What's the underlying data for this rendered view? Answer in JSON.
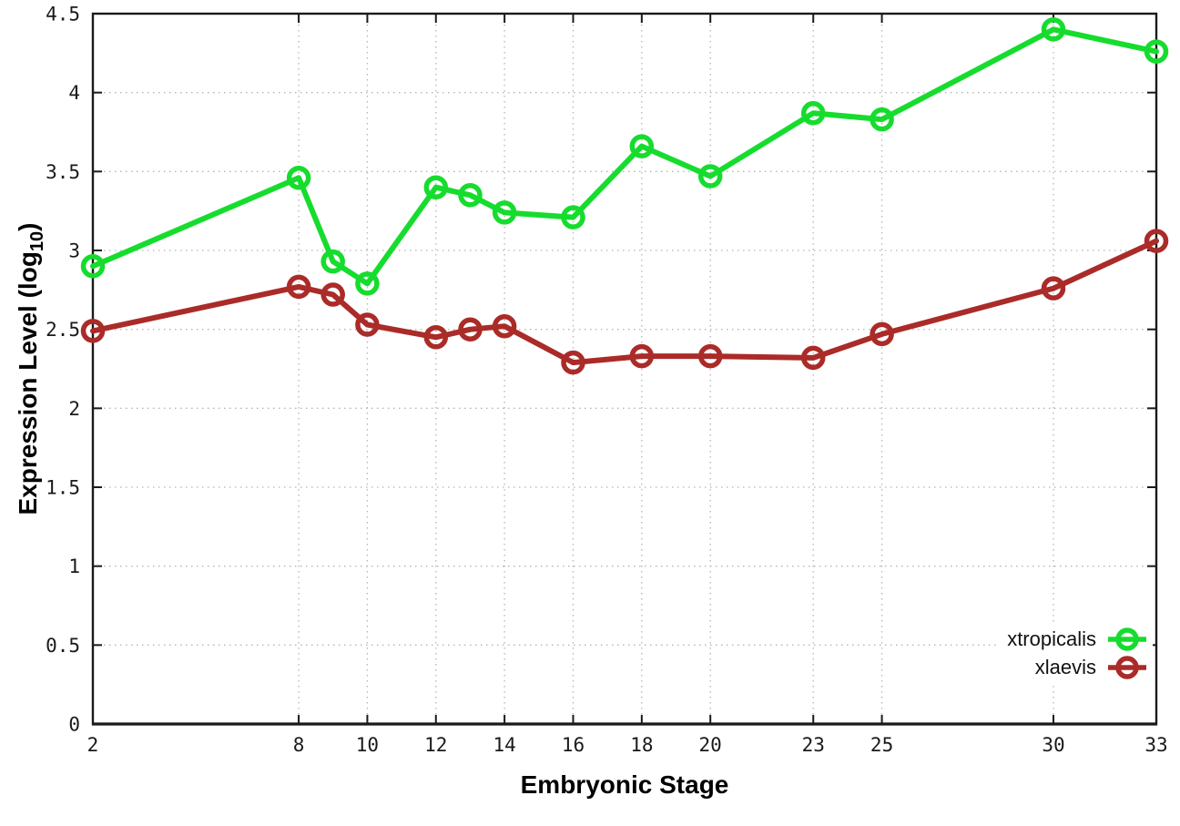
{
  "chart_data": {
    "type": "line",
    "title": "",
    "xlabel": "Embryonic Stage",
    "ylabel_main": "Expression Level (log",
    "ylabel_sub": "10",
    "ylabel_end": ")",
    "xlim": [
      2,
      33
    ],
    "ylim": [
      0,
      4.5
    ],
    "grid": true,
    "grid_style": "dotted",
    "legend_position": "bottom-right",
    "x_ticks": [
      {
        "value": 2,
        "label": "2"
      },
      {
        "value": 8,
        "label": "8"
      },
      {
        "value": 10,
        "label": "10"
      },
      {
        "value": 12,
        "label": "12"
      },
      {
        "value": 14,
        "label": "14"
      },
      {
        "value": 16,
        "label": "16"
      },
      {
        "value": 18,
        "label": "18"
      },
      {
        "value": 20,
        "label": "20"
      },
      {
        "value": 23,
        "label": "23"
      },
      {
        "value": 25,
        "label": "25"
      },
      {
        "value": 30,
        "label": "30"
      },
      {
        "value": 33,
        "label": "33"
      }
    ],
    "y_ticks": [
      {
        "value": 0,
        "label": "0"
      },
      {
        "value": 0.5,
        "label": "0.5"
      },
      {
        "value": 1,
        "label": "1"
      },
      {
        "value": 1.5,
        "label": "1.5"
      },
      {
        "value": 2,
        "label": "2"
      },
      {
        "value": 2.5,
        "label": "2.5"
      },
      {
        "value": 3,
        "label": "3"
      },
      {
        "value": 3.5,
        "label": "3.5"
      },
      {
        "value": 4,
        "label": "4"
      },
      {
        "value": 4.5,
        "label": "4.5"
      }
    ],
    "x": [
      2,
      8,
      9,
      10,
      12,
      13,
      14,
      16,
      18,
      20,
      23,
      25,
      30,
      33
    ],
    "series": [
      {
        "name": "xtropicalis",
        "color": "#16dc2e",
        "values": [
          2.9,
          3.46,
          2.93,
          2.79,
          3.4,
          3.35,
          3.24,
          3.21,
          3.66,
          3.47,
          3.87,
          3.83,
          4.4,
          4.26
        ]
      },
      {
        "name": "xlaevis",
        "color": "#aa2b28",
        "values": [
          2.49,
          2.77,
          2.72,
          2.53,
          2.45,
          2.5,
          2.52,
          2.29,
          2.33,
          2.33,
          2.32,
          2.47,
          2.76,
          3.06
        ]
      }
    ],
    "colors": {
      "axis": "#1a1a1a",
      "grid": "#b5b5b5",
      "tick_text": "#1a1a1a"
    }
  }
}
